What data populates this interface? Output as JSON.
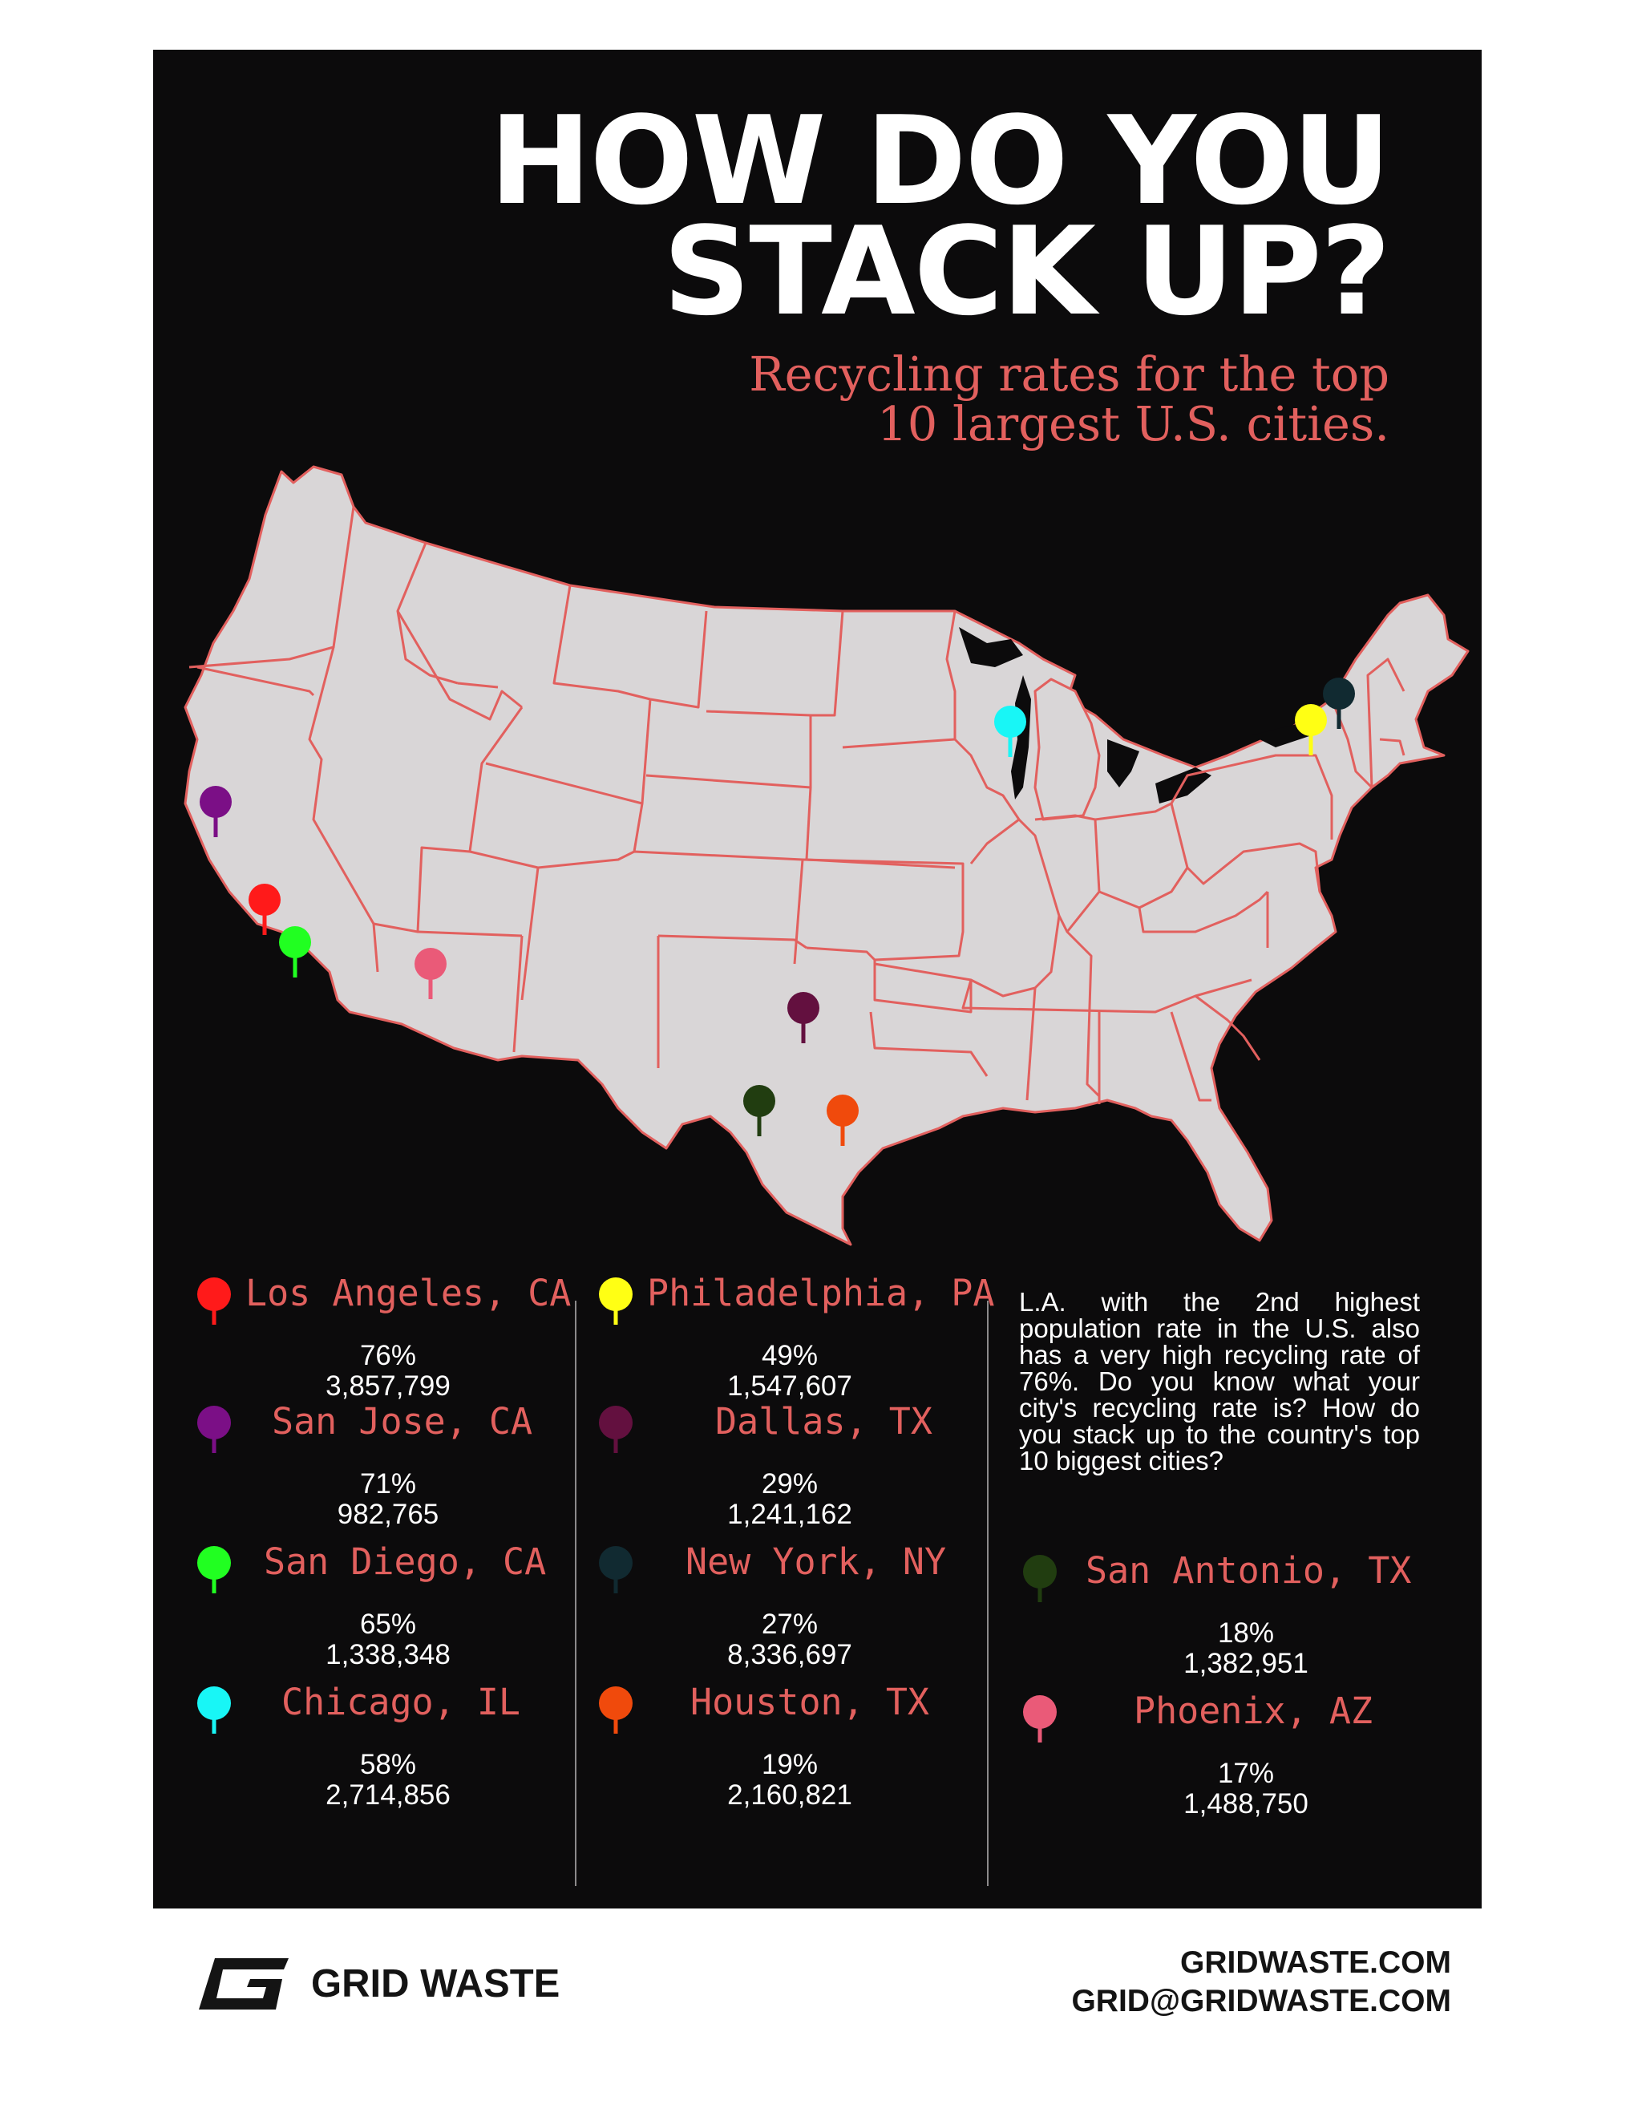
{
  "title_line1": "HOW DO YOU",
  "title_line2": "STACK UP?",
  "subtitle_line1": "Recycling rates for the top",
  "subtitle_line2": "10 largest U.S. cities.",
  "colors": {
    "background": "#0c0b0c",
    "accent": "#e2605e",
    "map_fill": "#d9d6d7"
  },
  "cities": [
    {
      "name": "Los Angeles, CA",
      "rate": "76%",
      "population": "3,857,799",
      "color": "#ff1a1a"
    },
    {
      "name": "San Jose, CA",
      "rate": "71%",
      "population": "982,765",
      "color": "#7b0f86"
    },
    {
      "name": "San Diego, CA",
      "rate": "65%",
      "population": "1,338,348",
      "color": "#21ff21"
    },
    {
      "name": "Chicago, IL",
      "rate": "58%",
      "population": "2,714,856",
      "color": "#18f6f6"
    },
    {
      "name": "Philadelphia, PA",
      "rate": "49%",
      "population": "1,547,607",
      "color": "#ffff14"
    },
    {
      "name": "Dallas, TX",
      "rate": "29%",
      "population": "1,241,162",
      "color": "#63103f"
    },
    {
      "name": "New York, NY",
      "rate": "27%",
      "population": "8,336,697",
      "color": "#112a31"
    },
    {
      "name": "Houston, TX",
      "rate": "19%",
      "population": "2,160,821",
      "color": "#f04a0c"
    },
    {
      "name": "San Antonio, TX",
      "rate": "18%",
      "population": "1,382,951",
      "color": "#213d10"
    },
    {
      "name": "Phoenix, AZ",
      "rate": "17%",
      "population": "1,488,750",
      "color": "#ea5a78"
    }
  ],
  "note": "L.A. with the 2nd highest population rate in the U.S. also has a very high recycling rate of 76%. Do you know what your city's recycling rate is? How do you stack up to the country's top 10 biggest cities?",
  "brand": "GRID WASTE",
  "website": "GRIDWASTE.COM",
  "email": "GRID@GRIDWASTE.COM"
}
